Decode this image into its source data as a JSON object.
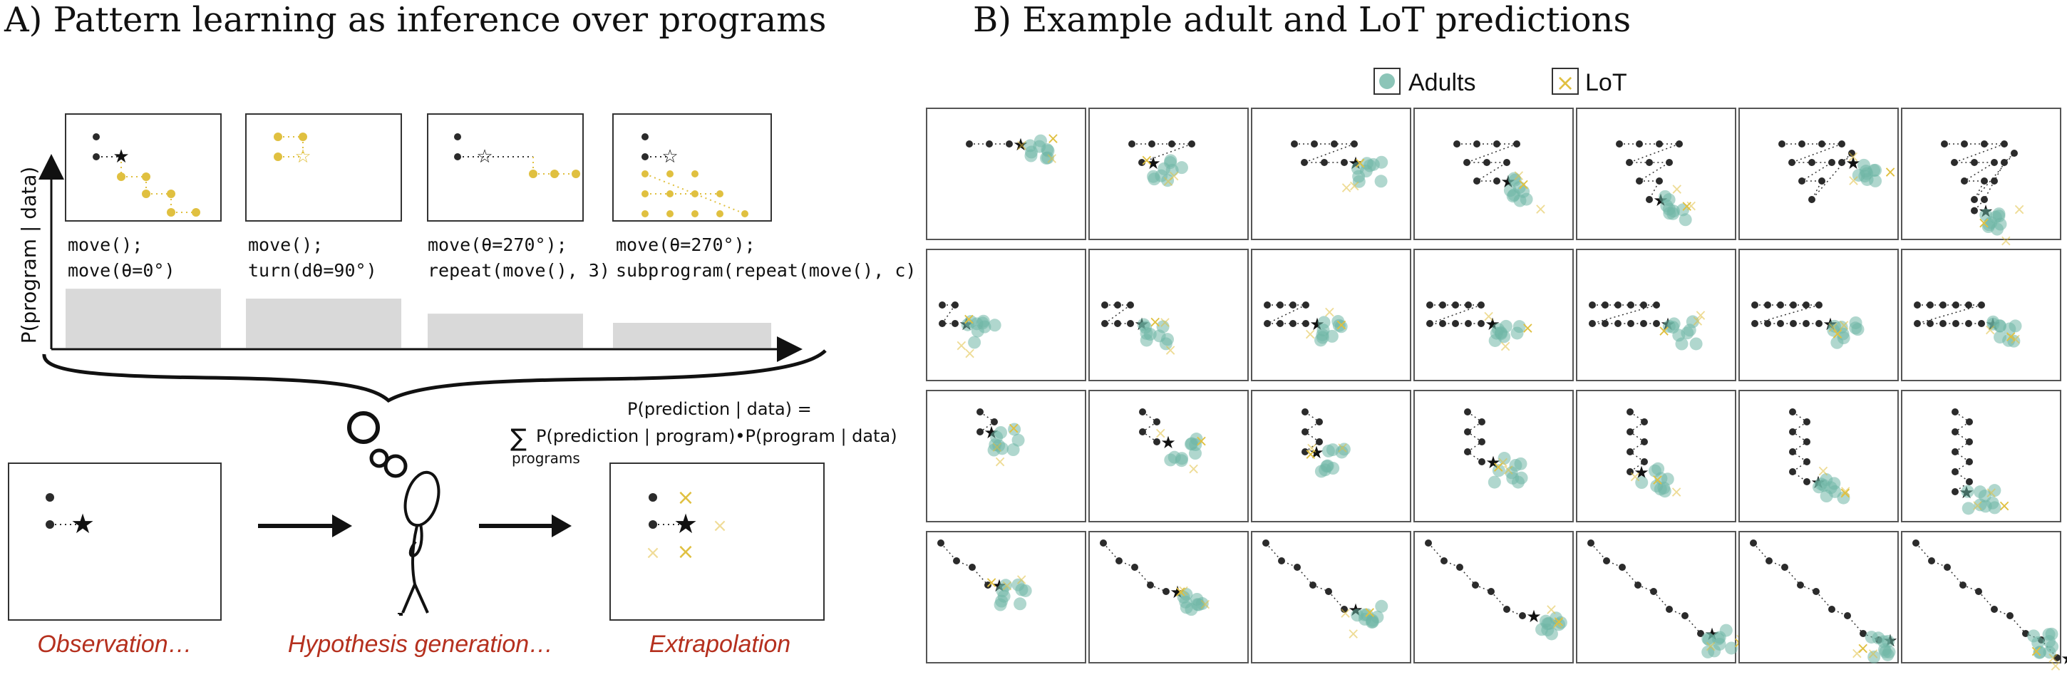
{
  "panel_a": {
    "title": "A) Pattern learning as inference over programs",
    "y_axis_label": "P(program | data)",
    "programs": [
      {
        "line1": "move();",
        "line2": "move(θ=0°)",
        "probability": 0.9
      },
      {
        "line1": "move();",
        "line2": "turn(dθ=90°)",
        "probability": 0.75
      },
      {
        "line1": "move(θ=270°);",
        "line2": "repeat(move(), 3)",
        "probability": 0.52
      },
      {
        "line1": "move(θ=270°);",
        "line2": "subprogram(repeat(move(), c))",
        "probability": 0.38
      }
    ],
    "formula": {
      "lhs": "P(prediction | data) =",
      "sum_symbol": "∑",
      "sum_sub": "programs",
      "rhs": "P(prediction | program)•P(program | data)"
    },
    "captions": {
      "observation": "Observation…",
      "hypothesis": "Hypothesis generation…",
      "extrapolation": "Extrapolation"
    }
  },
  "panel_b": {
    "title": "B) Example adult and LoT predictions",
    "legend": [
      {
        "label": "Adults",
        "color": "#6fb7a6"
      },
      {
        "label": "LoT",
        "color": "#e0c040"
      }
    ],
    "rows": 4,
    "cols": 7
  },
  "colors": {
    "adults": "#6fb7a6",
    "lot": "#e0c040",
    "dots": "#2b2b2b",
    "bars": "#d9d9d9",
    "caption": "#b5301e"
  }
}
